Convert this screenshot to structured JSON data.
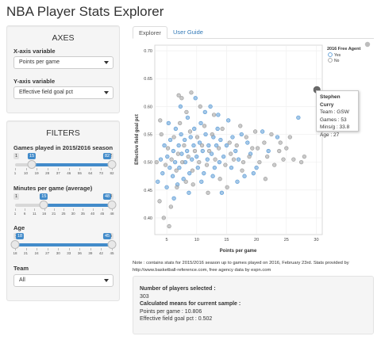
{
  "app_title": "NBA Player Stats Explorer",
  "axes_panel": {
    "title": "AXES",
    "x_label": "X-axis variable",
    "x_value": "Points per game",
    "y_label": "Y-axis variable",
    "y_value": "Effective field goal pct"
  },
  "filters_panel": {
    "title": "FILTERS",
    "games": {
      "label": "Games played in 2015/2016 season",
      "min": "1",
      "max": "82",
      "from": "15",
      "to": "82",
      "min_v": 1,
      "max_v": 82,
      "from_v": 15,
      "to_v": 82,
      "ticks": [
        "1",
        "10",
        "19",
        "28",
        "37",
        "46",
        "55",
        "64",
        "73",
        "82"
      ]
    },
    "minutes": {
      "label": "Minutes per game (average)",
      "min": "1",
      "max": "48",
      "from": "15",
      "to": "48",
      "min_v": 1,
      "max_v": 48,
      "from_v": 15,
      "to_v": 48,
      "ticks": [
        "1",
        "6",
        "11",
        "16",
        "21",
        "25",
        "30",
        "35",
        "40",
        "45",
        "48"
      ]
    },
    "age": {
      "label": "Age",
      "min": "18",
      "max": "45",
      "from": "18",
      "to": "45",
      "min_v": 18,
      "max_v": 45,
      "from_v": 18,
      "to_v": 45,
      "ticks": [
        "18",
        "21",
        "24",
        "27",
        "30",
        "33",
        "36",
        "39",
        "42",
        "45"
      ]
    },
    "team": {
      "label": "Team",
      "value": "All"
    }
  },
  "tabs": [
    {
      "label": "Explorer",
      "active": true
    },
    {
      "label": "User Guide",
      "active": false
    }
  ],
  "colors": {
    "yes": "#5b9bd5",
    "no": "#9e9e9e",
    "highlight": "#6b6b6b",
    "accent": "#428bca"
  },
  "chart_data": {
    "type": "scatter",
    "xlabel": "Points per game",
    "ylabel": "Effective field goal pct",
    "xlim": [
      3,
      31
    ],
    "ylim": [
      0.37,
      0.71
    ],
    "xticks": [
      5,
      10,
      15,
      20,
      25,
      30
    ],
    "yticks": [
      0.4,
      0.45,
      0.5,
      0.55,
      0.6,
      0.65,
      0.7
    ],
    "legend": {
      "title": "2016 Free Agent",
      "entries": [
        "Yes",
        "No"
      ],
      "placement": "top-right"
    },
    "highlight_point": {
      "x": 30.1,
      "y": 0.63
    },
    "series": [
      {
        "name": "Yes",
        "points": [
          [
            3.5,
            0.465
          ],
          [
            4.0,
            0.505
          ],
          [
            4.3,
            0.48
          ],
          [
            4.6,
            0.53
          ],
          [
            5.0,
            0.455
          ],
          [
            5.1,
            0.51
          ],
          [
            5.5,
            0.49
          ],
          [
            5.6,
            0.54
          ],
          [
            6.0,
            0.475
          ],
          [
            6.1,
            0.52
          ],
          [
            6.4,
            0.5
          ],
          [
            6.5,
            0.56
          ],
          [
            6.8,
            0.46
          ],
          [
            7.0,
            0.53
          ],
          [
            7.1,
            0.49
          ],
          [
            7.4,
            0.55
          ],
          [
            7.5,
            0.515
          ],
          [
            7.8,
            0.47
          ],
          [
            8.0,
            0.54
          ],
          [
            8.1,
            0.5
          ],
          [
            8.4,
            0.52
          ],
          [
            8.5,
            0.58
          ],
          [
            8.8,
            0.48
          ],
          [
            9.0,
            0.545
          ],
          [
            9.2,
            0.505
          ],
          [
            9.5,
            0.53
          ],
          [
            9.6,
            0.56
          ],
          [
            10.0,
            0.51
          ],
          [
            10.2,
            0.49
          ],
          [
            10.5,
            0.535
          ],
          [
            10.7,
            0.57
          ],
          [
            11.0,
            0.52
          ],
          [
            11.2,
            0.48
          ],
          [
            11.5,
            0.55
          ],
          [
            11.8,
            0.505
          ],
          [
            12.0,
            0.53
          ],
          [
            12.3,
            0.6
          ],
          [
            12.5,
            0.515
          ],
          [
            12.8,
            0.545
          ],
          [
            13.0,
            0.49
          ],
          [
            13.3,
            0.53
          ],
          [
            13.5,
            0.56
          ],
          [
            13.8,
            0.5
          ],
          [
            14.0,
            0.54
          ],
          [
            14.5,
            0.51
          ],
          [
            15.0,
            0.53
          ],
          [
            15.3,
            0.575
          ],
          [
            15.8,
            0.49
          ],
          [
            16.0,
            0.545
          ],
          [
            16.5,
            0.52
          ],
          [
            17.0,
            0.505
          ],
          [
            17.5,
            0.55
          ],
          [
            18.0,
            0.475
          ],
          [
            18.5,
            0.535
          ],
          [
            19.0,
            0.515
          ],
          [
            20.0,
            0.49
          ],
          [
            21.0,
            0.555
          ],
          [
            22.0,
            0.52
          ],
          [
            23.5,
            0.545
          ],
          [
            27.0,
            0.58
          ],
          [
            6.2,
            0.435
          ],
          [
            8.7,
            0.445
          ],
          [
            10.8,
            0.465
          ],
          [
            12.7,
            0.475
          ],
          [
            14.2,
            0.445
          ],
          [
            16.8,
            0.465
          ],
          [
            19.5,
            0.48
          ],
          [
            7.3,
            0.6
          ],
          [
            9.8,
            0.615
          ],
          [
            11.4,
            0.59
          ],
          [
            5.3,
            0.57
          ],
          [
            13.6,
            0.585
          ]
        ]
      },
      {
        "name": "No",
        "points": [
          [
            3.3,
            0.5
          ],
          [
            3.8,
            0.43
          ],
          [
            4.1,
            0.55
          ],
          [
            4.5,
            0.4
          ],
          [
            4.8,
            0.495
          ],
          [
            5.2,
            0.525
          ],
          [
            5.4,
            0.385
          ],
          [
            5.8,
            0.505
          ],
          [
            6.2,
            0.545
          ],
          [
            6.6,
            0.485
          ],
          [
            6.9,
            0.515
          ],
          [
            7.2,
            0.57
          ],
          [
            7.6,
            0.5
          ],
          [
            7.9,
            0.53
          ],
          [
            8.2,
            0.465
          ],
          [
            8.6,
            0.51
          ],
          [
            8.9,
            0.555
          ],
          [
            9.3,
            0.485
          ],
          [
            9.7,
            0.52
          ],
          [
            10.1,
            0.545
          ],
          [
            10.4,
            0.5
          ],
          [
            10.9,
            0.53
          ],
          [
            11.3,
            0.565
          ],
          [
            11.7,
            0.495
          ],
          [
            12.1,
            0.52
          ],
          [
            12.6,
            0.55
          ],
          [
            13.1,
            0.505
          ],
          [
            13.7,
            0.525
          ],
          [
            14.3,
            0.56
          ],
          [
            14.8,
            0.495
          ],
          [
            15.5,
            0.535
          ],
          [
            16.2,
            0.505
          ],
          [
            16.7,
            0.53
          ],
          [
            17.3,
            0.565
          ],
          [
            17.8,
            0.5
          ],
          [
            18.3,
            0.545
          ],
          [
            18.8,
            0.51
          ],
          [
            19.3,
            0.525
          ],
          [
            19.8,
            0.555
          ],
          [
            20.5,
            0.5
          ],
          [
            21.3,
            0.535
          ],
          [
            21.8,
            0.51
          ],
          [
            22.5,
            0.55
          ],
          [
            23.0,
            0.495
          ],
          [
            24.0,
            0.535
          ],
          [
            24.5,
            0.505
          ],
          [
            25.0,
            0.525
          ],
          [
            25.6,
            0.545
          ],
          [
            26.2,
            0.505
          ],
          [
            27.5,
            0.5
          ],
          [
            28.0,
            0.51
          ],
          [
            7.0,
            0.62
          ],
          [
            7.5,
            0.615
          ],
          [
            9.1,
            0.625
          ],
          [
            10.6,
            0.6
          ],
          [
            3.9,
            0.575
          ],
          [
            5.7,
            0.42
          ],
          [
            11.9,
            0.445
          ],
          [
            15.1,
            0.455
          ],
          [
            21.5,
            0.47
          ],
          [
            9.4,
            0.46
          ],
          [
            13.9,
            0.47
          ],
          [
            17.6,
            0.485
          ],
          [
            6.7,
            0.455
          ],
          [
            12.9,
            0.585
          ],
          [
            8.3,
            0.59
          ],
          [
            15.7,
            0.515
          ],
          [
            20.2,
            0.525
          ],
          [
            23.8,
            0.52
          ]
        ]
      }
    ]
  },
  "tooltip": {
    "name": "Stephen Curry",
    "team": "Team : GSW",
    "games": "Games : 53",
    "mins": "Mins/g : 33.8",
    "age": "Age : 27"
  },
  "note": "Note : contains stats for 2015/2016 season up to games played on 2016, February 23rd. Stats provided by http://www.basketball-reference.com, free agency data by espn.com",
  "summary": {
    "count_label": "Number of players selected :",
    "count_value": "303",
    "means_label": "Calculated means for current sample :",
    "ppg": "Points per game : 10.806",
    "efg": "Effective field goal pct : 0.502"
  }
}
